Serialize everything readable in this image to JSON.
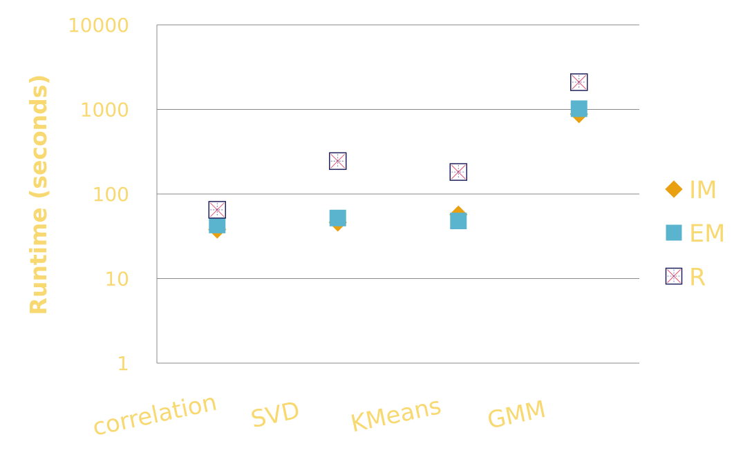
{
  "chart_data": {
    "type": "scatter",
    "title": "",
    "xlabel": "",
    "ylabel": "Runtime (seconds)",
    "yscale": "log",
    "ylim": [
      1,
      10000
    ],
    "yticks": [
      "1",
      "10",
      "100",
      "1000",
      "10000"
    ],
    "categories": [
      "correlation",
      "SVD",
      "KMeans",
      "GMM"
    ],
    "grid": "horizontal",
    "legend_position": "right",
    "series": [
      {
        "name": "IM",
        "marker": "diamond",
        "color": "#E8A010",
        "values": [
          38,
          46,
          57,
          880
        ]
      },
      {
        "name": "EM",
        "marker": "square",
        "color": "#5BB4CE",
        "values": [
          43,
          52,
          48,
          1020
        ]
      },
      {
        "name": "R",
        "marker": "crossed-square",
        "color": "#1F1F5C",
        "values": [
          65,
          245,
          182,
          2100
        ]
      }
    ],
    "text_color": "#F8D870"
  }
}
